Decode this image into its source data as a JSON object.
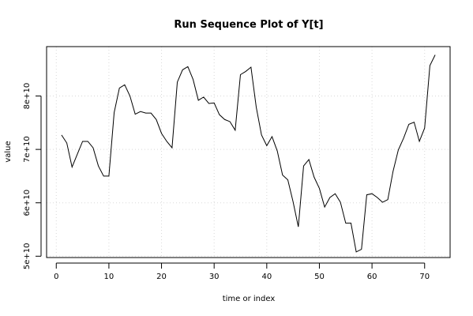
{
  "chart_data": {
    "type": "line",
    "title": "Run Sequence Plot of Y[t]",
    "xlabel": "time or index",
    "ylabel": "value",
    "xlim": [
      -1.84,
      74.84
    ],
    "ylim": [
      49750000000,
      89250000000
    ],
    "x_ticks": [
      0,
      10,
      20,
      30,
      40,
      50,
      60,
      70
    ],
    "x_tick_labels": [
      "0",
      "10",
      "20",
      "30",
      "40",
      "50",
      "60",
      "70"
    ],
    "y_ticks": [
      50000000000,
      60000000000,
      70000000000,
      80000000000
    ],
    "y_tick_labels": [
      "5e+10",
      "6e+10",
      "7e+10",
      "8e+10"
    ],
    "grid": true,
    "x": [
      1,
      2,
      3,
      4,
      5,
      6,
      7,
      8,
      9,
      10,
      11,
      12,
      13,
      14,
      15,
      16,
      17,
      18,
      19,
      20,
      21,
      22,
      23,
      24,
      25,
      26,
      27,
      28,
      29,
      30,
      31,
      32,
      33,
      34,
      35,
      36,
      37,
      38,
      39,
      40,
      41,
      42,
      43,
      44,
      45,
      46,
      47,
      48,
      49,
      50,
      51,
      52,
      53,
      54,
      55,
      56,
      57,
      58,
      59,
      60,
      61,
      62,
      63,
      64,
      65,
      66,
      67,
      68,
      69,
      70,
      71,
      72
    ],
    "values": [
      72700000000,
      71200000000,
      66700000000,
      69100000000,
      71500000000,
      71500000000,
      70300000000,
      66900000000,
      65000000000,
      65000000000,
      76900000000,
      81500000000,
      82100000000,
      80000000000,
      76600000000,
      77100000000,
      76800000000,
      76800000000,
      75600000000,
      73000000000,
      71500000000,
      70300000000,
      82600000000,
      84900000000,
      85500000000,
      83100000000,
      79200000000,
      79800000000,
      78600000000,
      78700000000,
      76500000000,
      75600000000,
      75200000000,
      73600000000,
      84000000000,
      84600000000,
      85400000000,
      77900000000,
      72700000000,
      70700000000,
      72400000000,
      69700000000,
      65200000000,
      64300000000,
      60200000000,
      55500000000,
      66900000000,
      68100000000,
      64800000000,
      62700000000,
      59200000000,
      61000000000,
      61700000000,
      60100000000,
      56200000000,
      56200000000,
      50800000000,
      51300000000,
      61500000000,
      61700000000,
      61000000000,
      60100000000,
      60600000000,
      65900000000,
      69900000000,
      72100000000,
      74700000000,
      75100000000,
      71500000000,
      74000000000,
      85700000000,
      87700000000
    ]
  }
}
